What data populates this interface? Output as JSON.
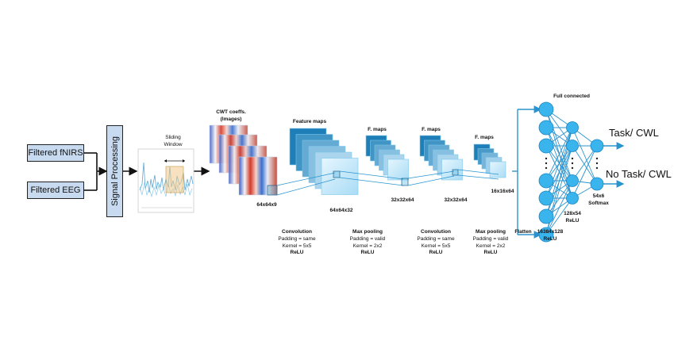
{
  "inputs": {
    "fnirs": "Filtered fNIRS",
    "eeg": "Filtered EEG"
  },
  "signal_processing": "Signal Processing",
  "sliding_window": {
    "line1": "Sliding",
    "line2": "Window"
  },
  "cwt": {
    "line1": "CWT coeffs.",
    "line2": "(Images)",
    "dims": "64x64x9"
  },
  "feature_maps": {
    "title": "Feature maps",
    "dims": "64x64x32"
  },
  "fmaps1": {
    "title": "F. maps",
    "dims": "32x32x64"
  },
  "fmaps2": {
    "title": "F. maps",
    "dims": "32x32x64"
  },
  "fmaps3": {
    "title": "F. maps",
    "dims": "16x16x64"
  },
  "layers": {
    "conv1": {
      "name": "Convolution",
      "p1": "Padding = same",
      "p2": "Kernel = 5x5",
      "act": "ReLU"
    },
    "pool1": {
      "name": "Max pooling",
      "p1": "Padding = valid",
      "p2": "Kernel = 2x2",
      "act": "ReLU"
    },
    "conv2": {
      "name": "Convolution",
      "p1": "Padding = same",
      "p2": "Kernel = 5x5",
      "act": "ReLU"
    },
    "pool2": {
      "name": "Max pooling",
      "p1": "Padding = valid",
      "p2": "Kernel = 2x2",
      "act": "ReLU"
    }
  },
  "flatten": "Flatten",
  "dense1": {
    "dims": "16384x128",
    "act": "ReLU"
  },
  "dense2": {
    "dims": "128x54",
    "act": "ReLU"
  },
  "dense3": {
    "dims": "54x6",
    "act": "Softmax"
  },
  "full_connected": "Full connected",
  "outputs": {
    "task": "Task/ CWL",
    "no_task": "No Task/ CWL"
  },
  "colors": {
    "box_fill": "#c8daf0",
    "map_dark": "#1e7fb8",
    "map_light": "#cdebfa",
    "neuron": "#39b4ec",
    "connection": "#2a94d0"
  }
}
